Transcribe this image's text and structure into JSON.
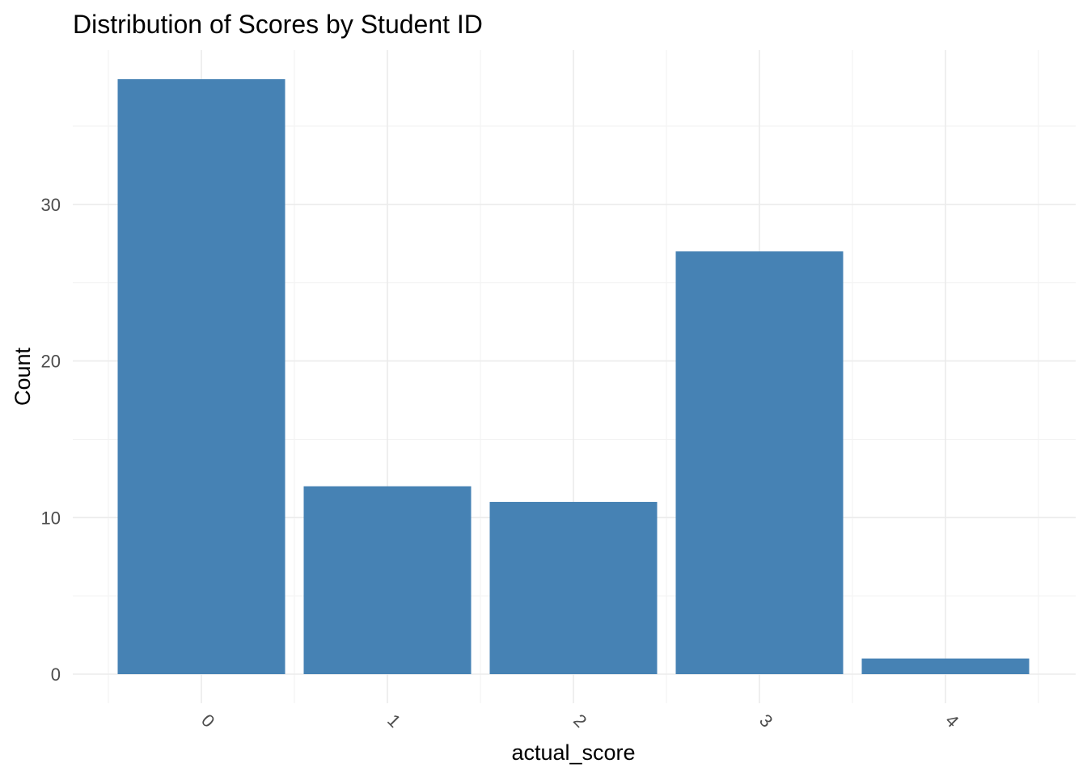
{
  "chart_data": {
    "type": "bar",
    "title": "Distribution of Scores by Student ID",
    "xlabel": "actual_score",
    "ylabel": "Count",
    "categories": [
      "0",
      "1",
      "2",
      "3",
      "4"
    ],
    "values": [
      38,
      12,
      11,
      27,
      1
    ],
    "ylim": [
      0,
      40
    ],
    "yticks": [
      0,
      10,
      20,
      30
    ],
    "x_tick_rotation_deg": 45,
    "grid": true,
    "legend": "none",
    "bar_color": "#4682B4",
    "theme": "minimal"
  }
}
